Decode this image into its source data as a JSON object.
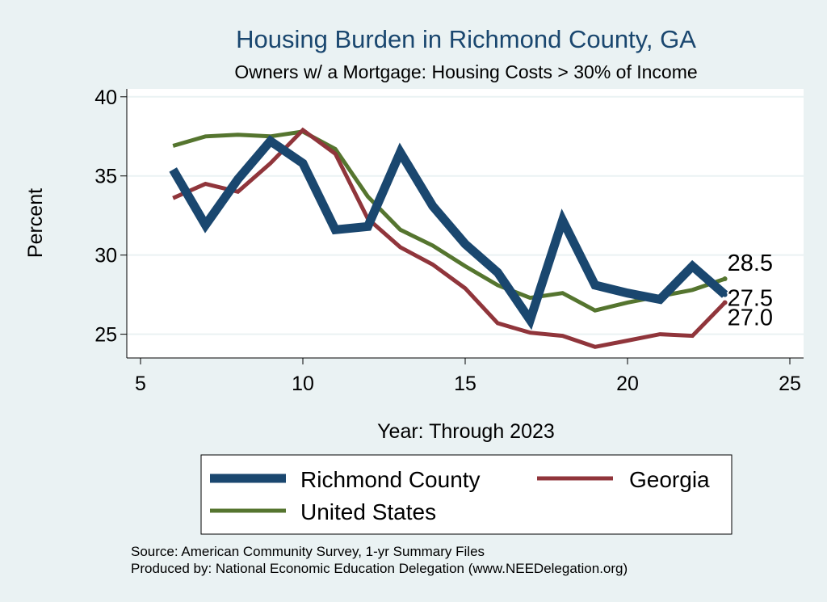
{
  "chart_data": {
    "type": "line",
    "title": "Housing Burden in Richmond County, GA",
    "subtitle": "Owners w/ a Mortgage: Housing Costs > 30% of Income",
    "xlabel": "Year: Through 2023",
    "ylabel": "Percent",
    "xlim": [
      5,
      25
    ],
    "ylim": [
      23.5,
      40.5
    ],
    "xticks": [
      "5",
      "10",
      "15",
      "20",
      "25"
    ],
    "yticks": [
      "25",
      "30",
      "35",
      "40"
    ],
    "x": [
      6,
      7,
      8,
      9,
      10,
      11,
      12,
      13,
      14,
      15,
      16,
      17,
      18,
      19,
      20,
      21,
      22,
      23
    ],
    "series": [
      {
        "name": "Richmond County",
        "color": "#1a476f",
        "values": [
          35.4,
          31.9,
          34.8,
          37.2,
          35.8,
          31.6,
          31.8,
          36.5,
          33.1,
          30.7,
          28.9,
          25.9,
          32.2,
          28.1,
          27.6,
          27.2,
          29.3,
          27.5
        ],
        "end_label": "27.5"
      },
      {
        "name": "Georgia",
        "color": "#90353b",
        "values": [
          33.6,
          34.5,
          34.0,
          35.8,
          37.9,
          36.4,
          32.3,
          30.5,
          29.4,
          27.9,
          25.7,
          25.1,
          24.9,
          24.2,
          24.6,
          25.0,
          24.9,
          27.0
        ],
        "end_label": "27.0"
      },
      {
        "name": "United States",
        "color": "#55752f",
        "values": [
          36.9,
          37.5,
          37.6,
          37.5,
          37.8,
          36.7,
          33.7,
          31.6,
          30.6,
          29.3,
          28.1,
          27.3,
          27.6,
          26.5,
          27.0,
          27.4,
          27.8,
          28.5
        ],
        "end_label": "28.5"
      }
    ],
    "legend": [
      "Richmond County",
      "Georgia",
      "United States"
    ],
    "legend_position": "bottom"
  },
  "footer": {
    "source": "Source: American Community Survey, 1-yr Summary Files",
    "produced": "Produced by: National Economic Education Delegation (www.NEEDelegation.org)"
  }
}
